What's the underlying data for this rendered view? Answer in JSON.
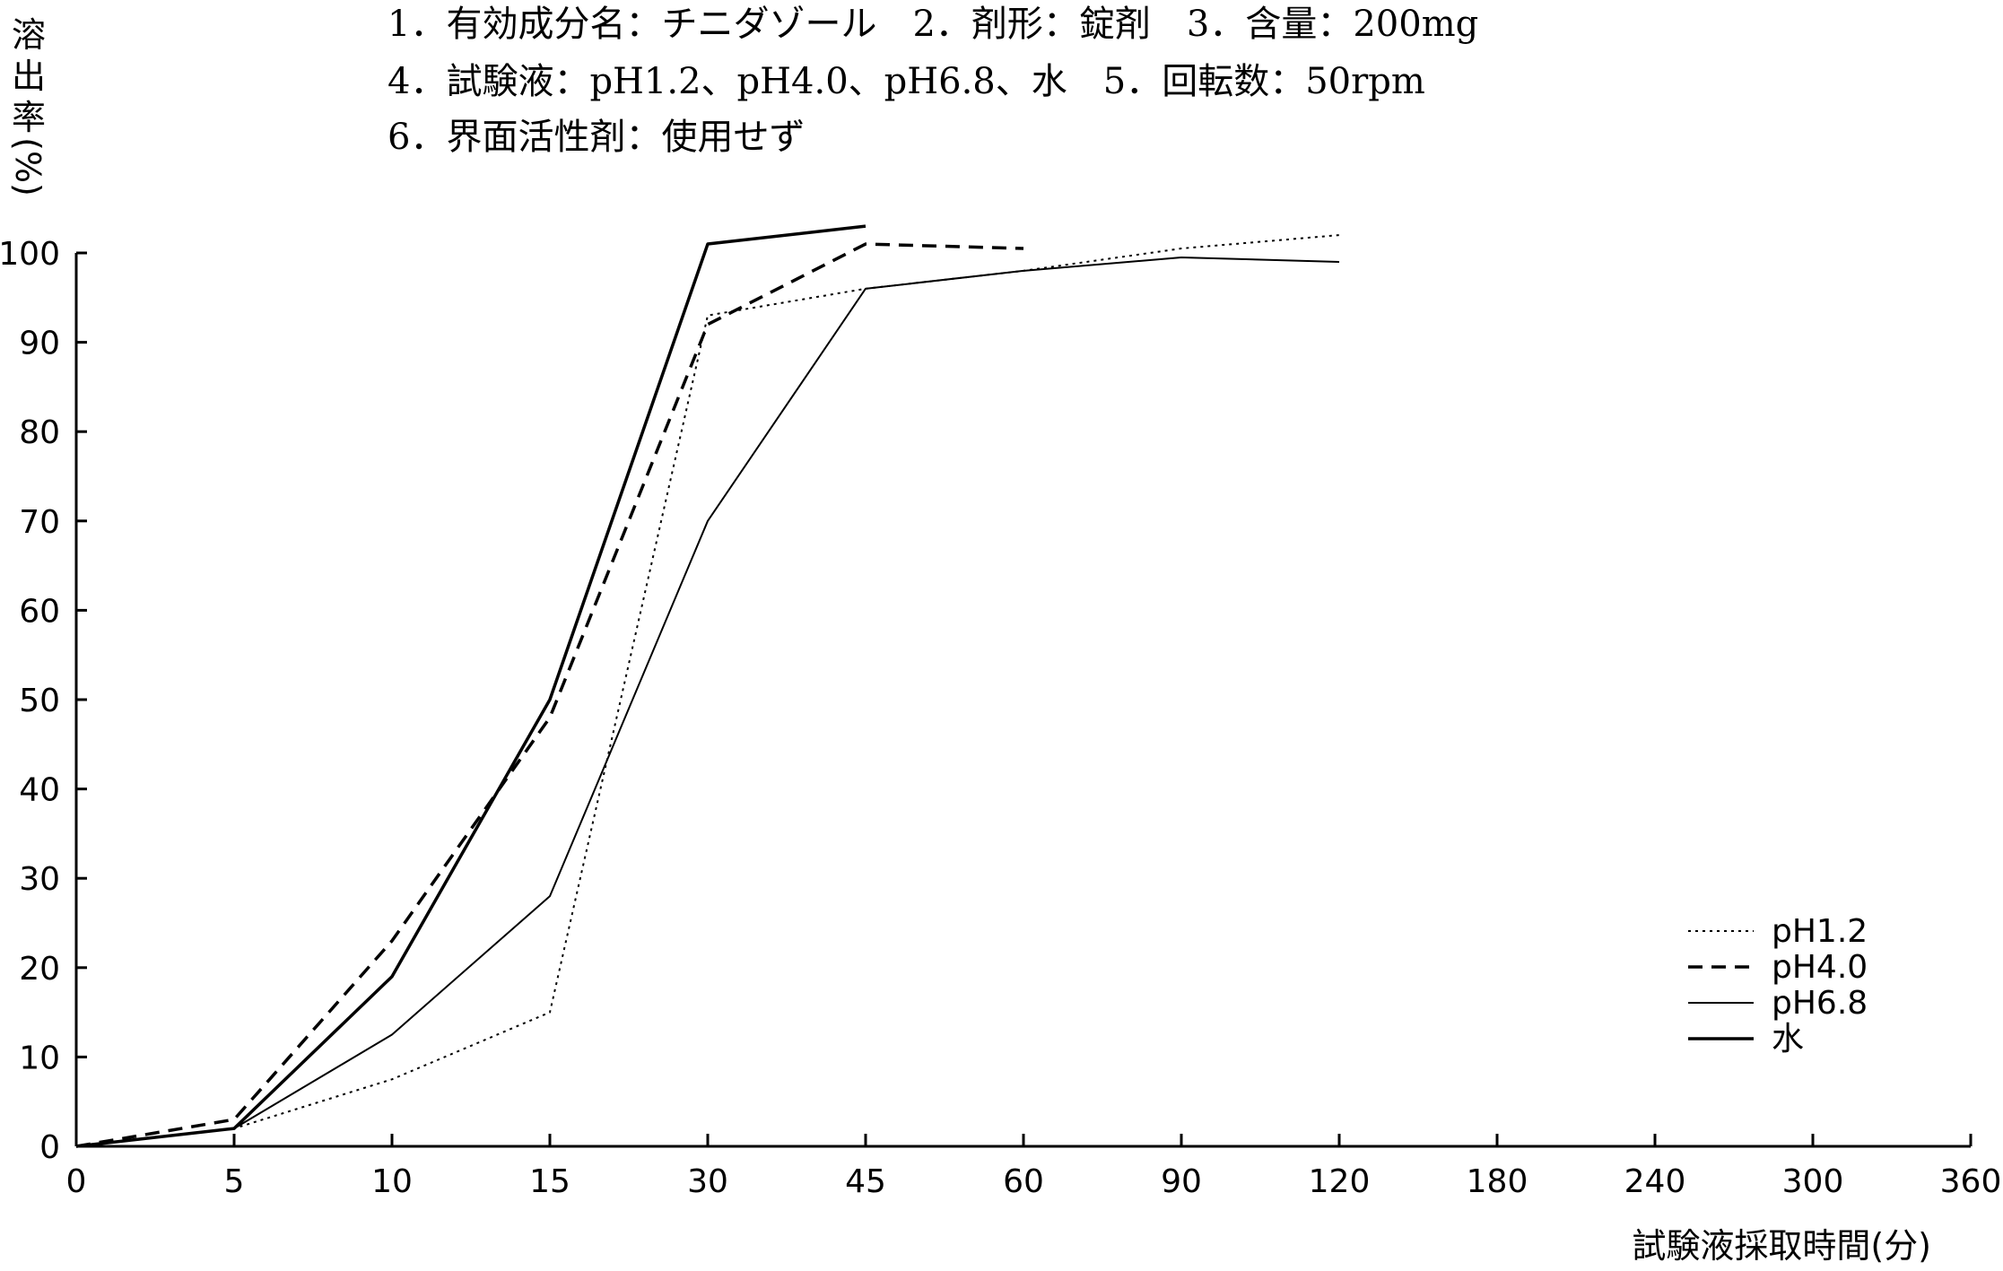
{
  "header": {
    "line1": "1．有効成分名：チニダゾール　2．剤形：錠剤　3．含量：200mg",
    "line2": "4．試験液：pH1.2、pH4.0、pH6.8、水　5．回転数：50rpm",
    "line3": "6．界面活性剤：使用せず"
  },
  "chart_data": {
    "type": "line",
    "title": "",
    "xlabel": "試験液採取時間(分)",
    "ylabel": [
      "溶",
      "出",
      "率",
      "(%)"
    ],
    "x": [
      "0",
      "5",
      "10",
      "15",
      "30",
      "45",
      "60",
      "90",
      "120",
      "180",
      "240",
      "300",
      "360"
    ],
    "yticks": [
      "0",
      "10",
      "20",
      "30",
      "40",
      "50",
      "60",
      "70",
      "80",
      "90",
      "100"
    ],
    "ylim": [
      0,
      100
    ],
    "grid": false,
    "legend_position": "bottom-right",
    "series": [
      {
        "name": "pH1.2",
        "style": "dotted",
        "values": [
          0,
          2,
          7.5,
          15,
          93,
          96,
          98,
          100.5,
          102,
          null,
          null,
          null,
          null
        ]
      },
      {
        "name": "pH4.0",
        "style": "dashed",
        "values": [
          0,
          3,
          23,
          48,
          92,
          101,
          100.5,
          null,
          null,
          null,
          null,
          null,
          null
        ]
      },
      {
        "name": "pH6.8",
        "style": "thin-solid",
        "values": [
          0,
          2,
          12.5,
          28,
          70,
          96,
          98,
          99.5,
          99,
          null,
          null,
          null,
          null
        ]
      },
      {
        "name": "水",
        "style": "thick-solid",
        "values": [
          0,
          2,
          19,
          50,
          101,
          103,
          null,
          null,
          null,
          null,
          null,
          null,
          null
        ]
      }
    ]
  }
}
